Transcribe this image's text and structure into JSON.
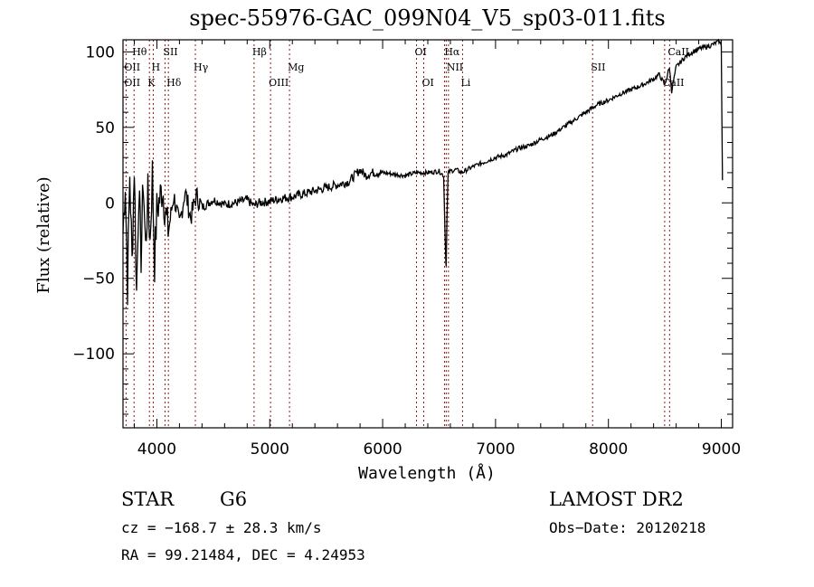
{
  "chart_data": {
    "type": "line",
    "title": "spec-55976-GAC_099N04_V5_sp03-011.fits",
    "xlabel": "Wavelength (Å)",
    "ylabel": "Flux (relative)",
    "xlim": [
      3700,
      9100
    ],
    "ylim": [
      -149,
      108
    ],
    "xticks": [
      4000,
      5000,
      6000,
      7000,
      8000,
      9000
    ],
    "xtick_labels": [
      "4000",
      "5000",
      "6000",
      "7000",
      "8000",
      "9000"
    ],
    "yticks": [
      100,
      50,
      0,
      -50,
      -100
    ],
    "ytick_labels": [
      "100",
      "50",
      "0",
      "−50",
      "−100"
    ],
    "grid": false,
    "series": [
      {
        "name": "spectrum",
        "color": "#000000",
        "x": [
          3700,
          3720,
          3740,
          3760,
          3780,
          3800,
          3820,
          3840,
          3860,
          3880,
          3900,
          3920,
          3940,
          3960,
          3980,
          4000,
          4050,
          4100,
          4150,
          4200,
          4250,
          4300,
          4350,
          4400,
          4500,
          4600,
          4700,
          4800,
          4860,
          4900,
          5000,
          5100,
          5200,
          5300,
          5400,
          5500,
          5600,
          5700,
          5800,
          5850,
          5900,
          6000,
          6100,
          6200,
          6300,
          6400,
          6500,
          6540,
          6560,
          6563,
          6570,
          6580,
          6600,
          6650,
          6700,
          6800,
          6900,
          7000,
          7100,
          7200,
          7300,
          7400,
          7500,
          7600,
          7700,
          7800,
          7900,
          8000,
          8100,
          8200,
          8300,
          8400,
          8450,
          8500,
          8540,
          8560,
          8600,
          8660,
          8700,
          8800,
          8900,
          8980,
          9000,
          9010
        ],
        "y": [
          -20,
          15,
          -55,
          20,
          -40,
          25,
          -60,
          10,
          -35,
          15,
          -30,
          5,
          -25,
          20,
          -40,
          -5,
          10,
          -20,
          5,
          -15,
          8,
          -10,
          5,
          -3,
          2,
          -1,
          0,
          2,
          -2,
          0,
          1,
          3,
          4,
          6,
          8,
          10,
          12,
          14,
          22,
          18,
          20,
          20,
          19,
          18,
          20,
          20,
          21,
          18,
          -40,
          -42,
          -10,
          20,
          21,
          22,
          20,
          24,
          27,
          30,
          32,
          36,
          38,
          42,
          45,
          50,
          55,
          60,
          65,
          68,
          72,
          75,
          78,
          82,
          85,
          78,
          90,
          74,
          90,
          95,
          98,
          102,
          104,
          107,
          104,
          15
        ]
      }
    ],
    "line_markers": [
      {
        "label": "Hθ",
        "wavelength": 3798,
        "row": 1
      },
      {
        "label": "OII",
        "wavelength": 3727,
        "row": 2
      },
      {
        "label": "OII",
        "wavelength": 3727,
        "row": 3
      },
      {
        "label": "H",
        "wavelength": 3968,
        "row": 2
      },
      {
        "label": "K",
        "wavelength": 3934,
        "row": 3
      },
      {
        "label": "SII",
        "wavelength": 4072,
        "row": 1
      },
      {
        "label": "Hδ",
        "wavelength": 4102,
        "row": 3
      },
      {
        "label": "Hγ",
        "wavelength": 4341,
        "row": 2
      },
      {
        "label": "Hβ",
        "wavelength": 4861,
        "row": 1
      },
      {
        "label": "OIII",
        "wavelength": 5007,
        "row": 3
      },
      {
        "label": "Mg",
        "wavelength": 5175,
        "row": 2
      },
      {
        "label": "OI",
        "wavelength": 6300,
        "row": 1
      },
      {
        "label": "OI",
        "wavelength": 6364,
        "row": 3
      },
      {
        "label": "Hα",
        "wavelength": 6563,
        "row": 1
      },
      {
        "label": "NII",
        "wavelength": 6583,
        "row": 2
      },
      {
        "label": "Li",
        "wavelength": 6708,
        "row": 3
      },
      {
        "label": "SII",
        "wavelength": 7860,
        "row": 2
      },
      {
        "label": "CaII",
        "wavelength": 8542,
        "row": 1
      },
      {
        "label": "CaII",
        "wavelength": 8498,
        "row": 3
      }
    ],
    "marker_wavelengths": [
      3727,
      3798,
      3934,
      3968,
      4072,
      4102,
      4341,
      4861,
      5007,
      5175,
      6300,
      6364,
      6548,
      6563,
      6583,
      6708,
      7860,
      8498,
      8542
    ],
    "marker_color": "#8b1a1a"
  },
  "info": {
    "class": "STAR",
    "subclass": "G6",
    "survey": "LAMOST DR2",
    "cz": "cz = −168.7 ± 28.3 km/s",
    "obs_date": "Obs−Date: 20120218",
    "coords": "RA =  99.21484, DEC =   4.24953"
  }
}
